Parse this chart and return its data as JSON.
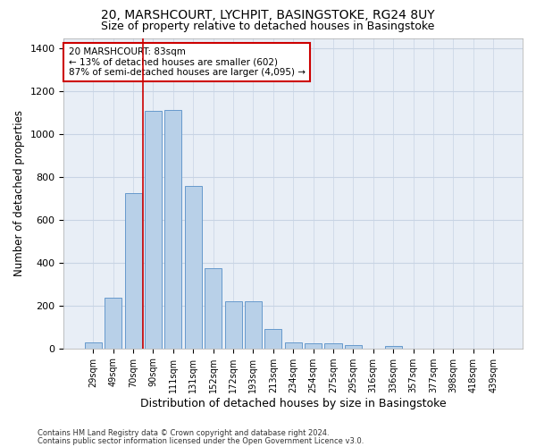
{
  "title1": "20, MARSHCOURT, LYCHPIT, BASINGSTOKE, RG24 8UY",
  "title2": "Size of property relative to detached houses in Basingstoke",
  "xlabel": "Distribution of detached houses by size in Basingstoke",
  "ylabel": "Number of detached properties",
  "categories": [
    "29sqm",
    "49sqm",
    "70sqm",
    "90sqm",
    "111sqm",
    "131sqm",
    "152sqm",
    "172sqm",
    "193sqm",
    "213sqm",
    "234sqm",
    "254sqm",
    "275sqm",
    "295sqm",
    "316sqm",
    "336sqm",
    "357sqm",
    "377sqm",
    "398sqm",
    "418sqm",
    "439sqm"
  ],
  "values": [
    30,
    235,
    725,
    1110,
    1115,
    760,
    375,
    220,
    220,
    90,
    30,
    25,
    22,
    15,
    0,
    12,
    0,
    0,
    0,
    0,
    0
  ],
  "bar_color": "#b8d0e8",
  "bar_edge_color": "#6699cc",
  "grid_color": "#c8d4e4",
  "bg_color": "#e8eef6",
  "marker_line_color": "#cc0000",
  "annotation_text": "20 MARSHCOURT: 83sqm\n← 13% of detached houses are smaller (602)\n87% of semi-detached houses are larger (4,095) →",
  "annotation_box_color": "#cc0000",
  "footnote1": "Contains HM Land Registry data © Crown copyright and database right 2024.",
  "footnote2": "Contains public sector information licensed under the Open Government Licence v3.0.",
  "ylim": [
    0,
    1450
  ],
  "title1_fontsize": 10,
  "title2_fontsize": 9,
  "xlabel_fontsize": 9,
  "ylabel_fontsize": 8.5,
  "tick_fontsize": 7,
  "annot_fontsize": 7.5,
  "footnote_fontsize": 6
}
